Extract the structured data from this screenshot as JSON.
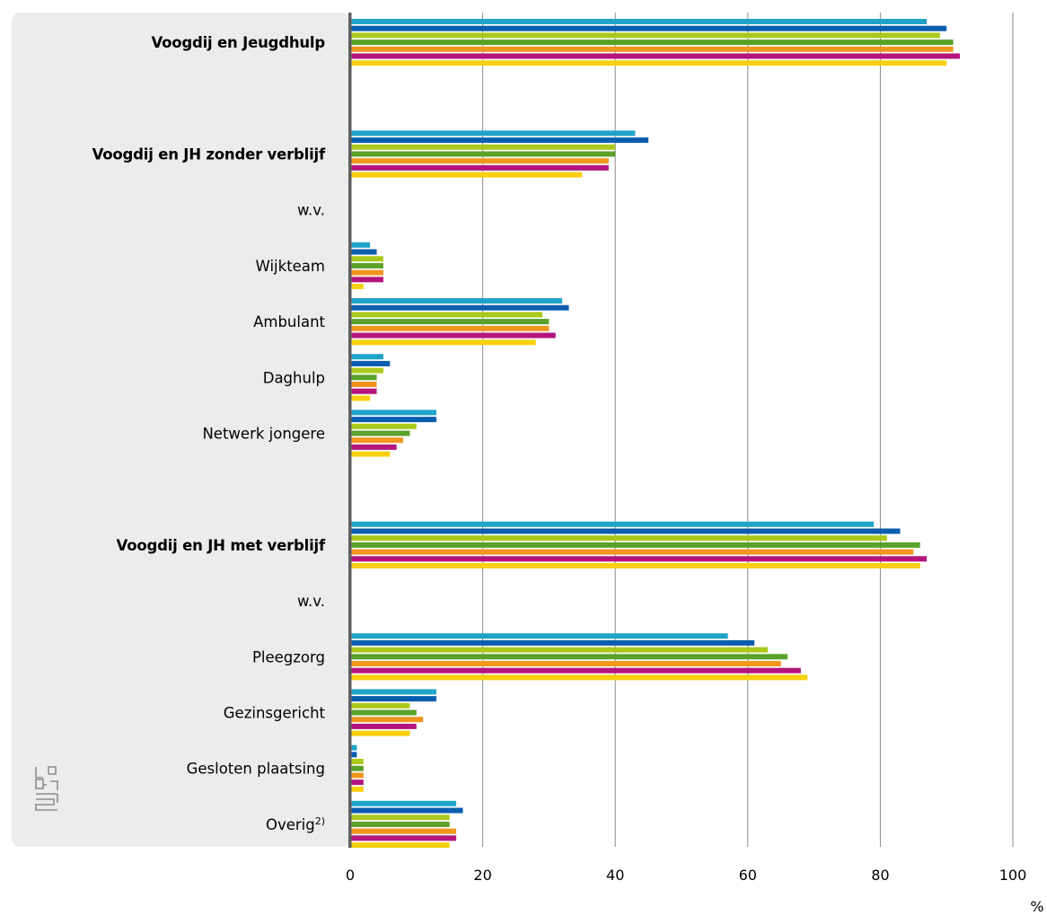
{
  "chart_data": {
    "type": "bar",
    "orientation": "horizontal",
    "title": "",
    "xlabel": "",
    "unit_label": "%",
    "xlim": [
      0,
      100
    ],
    "xticks": [
      0,
      20,
      40,
      60,
      80,
      100
    ],
    "grid": true,
    "legend": "none",
    "categories": [
      {
        "label": "Voogdij en Jeugdhulp",
        "emphasis": true,
        "values": [
          87,
          90,
          89,
          91,
          91,
          92,
          90
        ]
      },
      {
        "label": "Voogdij en JH zonder verblijf",
        "emphasis": true,
        "values": [
          43,
          45,
          40,
          40,
          39,
          39,
          35
        ]
      },
      {
        "label": "w.v.",
        "emphasis": false,
        "values": []
      },
      {
        "label": "Wijkteam",
        "emphasis": false,
        "values": [
          3,
          4,
          5,
          5,
          5,
          5,
          2
        ]
      },
      {
        "label": "Ambulant",
        "emphasis": false,
        "values": [
          32,
          33,
          29,
          30,
          30,
          31,
          28
        ]
      },
      {
        "label": "Daghulp",
        "emphasis": false,
        "values": [
          5,
          6,
          5,
          4,
          4,
          4,
          3
        ]
      },
      {
        "label": "Netwerk jongere",
        "emphasis": false,
        "values": [
          13,
          13,
          10,
          9,
          8,
          7,
          6
        ]
      },
      {
        "label": "Voogdij en JH met verblijf",
        "emphasis": true,
        "values": [
          79,
          83,
          81,
          86,
          85,
          87,
          86
        ]
      },
      {
        "label": "w.v.",
        "emphasis": false,
        "values": []
      },
      {
        "label": "Pleegzorg",
        "emphasis": false,
        "values": [
          57,
          61,
          63,
          66,
          65,
          68,
          69
        ]
      },
      {
        "label": "Gezinsgericht",
        "emphasis": false,
        "values": [
          13,
          13,
          9,
          10,
          11,
          10,
          9
        ]
      },
      {
        "label": "Gesloten plaatsing",
        "emphasis": false,
        "values": [
          1,
          1,
          2,
          2,
          2,
          2,
          2
        ]
      },
      {
        "label": "Overig",
        "label_sup": "2)",
        "emphasis": false,
        "values": [
          16,
          17,
          15,
          15,
          16,
          16,
          15
        ]
      }
    ],
    "series_colors": [
      "#1fa4c9",
      "#0b5eae",
      "#abc91c",
      "#5aa22b",
      "#f0961e",
      "#b3157c",
      "#f9cf10"
    ]
  },
  "logo": {
    "icon": "cbs-logo-icon"
  }
}
